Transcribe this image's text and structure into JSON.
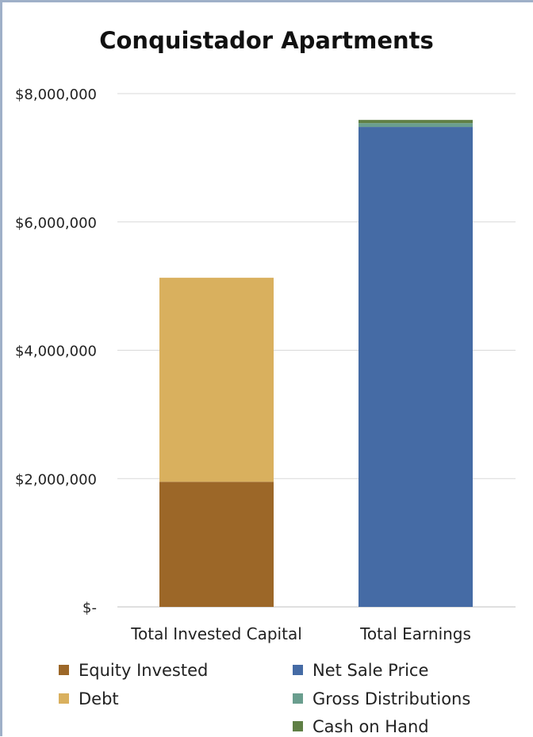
{
  "chart_data": {
    "type": "bar",
    "stacked": true,
    "title": "Conquistador Apartments",
    "xlabel": "",
    "ylabel": "",
    "ylim": [
      0,
      8000000
    ],
    "y_ticks": [
      {
        "value": 0,
        "label": "$-"
      },
      {
        "value": 2000000,
        "label": "$2,000,000"
      },
      {
        "value": 4000000,
        "label": "$4,000,000"
      },
      {
        "value": 6000000,
        "label": "$6,000,000"
      },
      {
        "value": 8000000,
        "label": "$8,000,000"
      }
    ],
    "grid": true,
    "legend_position": "bottom",
    "categories": [
      "Total Invested Capital",
      "Total Earnings"
    ],
    "series": [
      {
        "name": "Equity Invested",
        "color": "#9c6728",
        "values": [
          1950000,
          0
        ]
      },
      {
        "name": "Debt",
        "color": "#d9b05e",
        "values": [
          3180000,
          0
        ]
      },
      {
        "name": "Net Sale Price",
        "color": "#456ba5",
        "values": [
          0,
          7480000
        ]
      },
      {
        "name": "Gross Distributions",
        "color": "#6a9e8e",
        "values": [
          0,
          60000
        ]
      },
      {
        "name": "Cash on Hand",
        "color": "#5f7f45",
        "values": [
          0,
          50000
        ]
      }
    ]
  }
}
